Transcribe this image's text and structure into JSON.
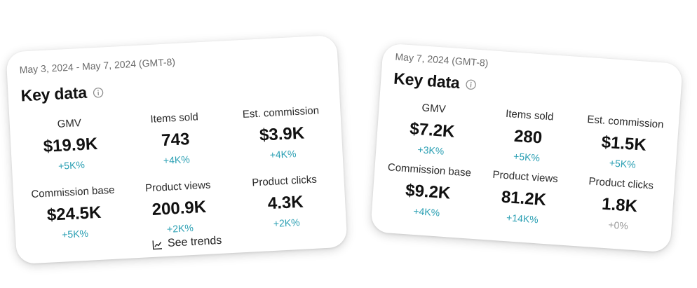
{
  "left_card": {
    "date_range": "May 3, 2024 - May 7, 2024 (GMT-8)",
    "title": "Key data",
    "metrics": [
      {
        "label": "GMV",
        "value": "$19.9K",
        "delta": "+5K%"
      },
      {
        "label": "Items sold",
        "value": "743",
        "delta": "+4K%"
      },
      {
        "label": "Est. commission",
        "value": "$3.9K",
        "delta": "+4K%"
      },
      {
        "label": "Commission base",
        "value": "$24.5K",
        "delta": "+5K%"
      },
      {
        "label": "Product views",
        "value": "200.9K",
        "delta": "+2K%"
      },
      {
        "label": "Product clicks",
        "value": "4.3K",
        "delta": "+2K%"
      }
    ],
    "trends_label": "See trends"
  },
  "right_card": {
    "date_range": "May 7, 2024 (GMT-8)",
    "title": "Key data",
    "metrics": [
      {
        "label": "GMV",
        "value": "$7.2K",
        "delta": "+3K%"
      },
      {
        "label": "Items sold",
        "value": "280",
        "delta": "+5K%"
      },
      {
        "label": "Est. commission",
        "value": "$1.5K",
        "delta": "+5K%"
      },
      {
        "label": "Commission base",
        "value": "$9.2K",
        "delta": "+4K%"
      },
      {
        "label": "Product views",
        "value": "81.2K",
        "delta": "+14K%"
      },
      {
        "label": "Product clicks",
        "value": "1.8K",
        "delta": "+0%"
      }
    ]
  },
  "colors": {
    "delta_positive": "#2a9fb3",
    "delta_neutral": "#9a9a9a"
  },
  "icons": {
    "info": "info-circle-icon",
    "trends": "line-chart-icon"
  }
}
